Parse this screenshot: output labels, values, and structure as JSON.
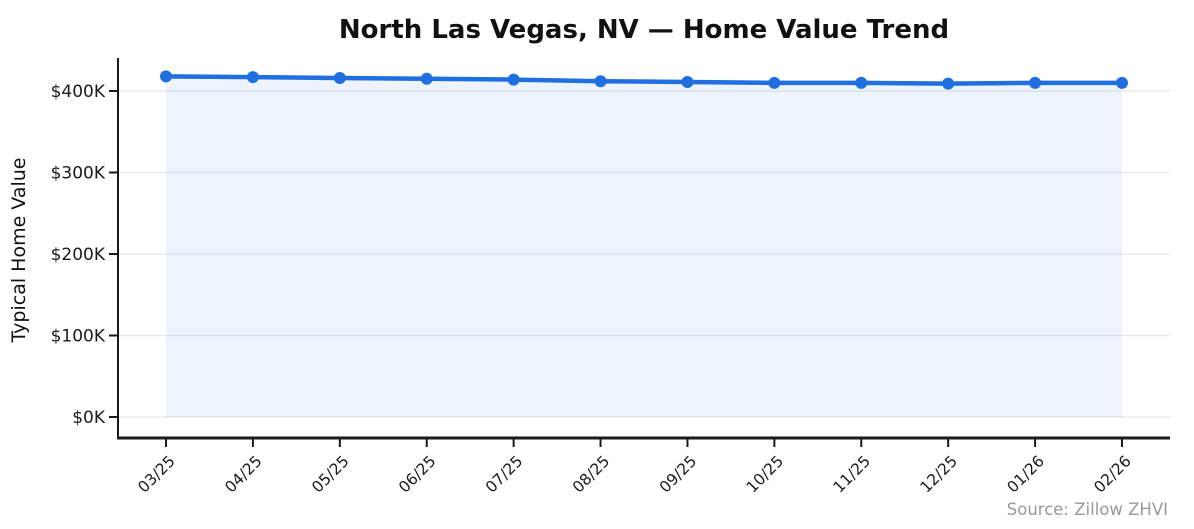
{
  "title": "North Las Vegas, NV — Home Value Trend",
  "source_note": "Source: Zillow ZHVI",
  "chart_data": {
    "type": "line",
    "title": "North Las Vegas, NV — Home Value Trend",
    "xlabel": "",
    "ylabel": "Typical Home Value",
    "x": [
      "03/25",
      "04/25",
      "05/25",
      "06/25",
      "07/25",
      "08/25",
      "09/25",
      "10/25",
      "11/25",
      "12/25",
      "01/26",
      "02/26"
    ],
    "series": [
      {
        "name": "Typical Home Value",
        "values": [
          418000,
          417000,
          416000,
          415000,
          414000,
          412000,
          411000,
          410000,
          410000,
          409000,
          410000,
          410000
        ]
      }
    ],
    "y_ticks": [
      {
        "value": 0,
        "label": "$0K"
      },
      {
        "value": 100000,
        "label": "$100K"
      },
      {
        "value": 200000,
        "label": "$200K"
      },
      {
        "value": 300000,
        "label": "$300K"
      },
      {
        "value": 400000,
        "label": "$400K"
      }
    ],
    "ylim": [
      0,
      440000
    ],
    "grid": "horizontal",
    "area_fill": true,
    "legend_position": "none",
    "annotations": [
      "Source: Zillow ZHVI"
    ],
    "colors": {
      "line": "#1f6fe0",
      "marker": "#1f6fe0",
      "area_fill": "rgba(31,111,224,0.08)",
      "grid": "#e8e8e8",
      "axis": "#1a1a1a",
      "tick_text": "#1a1a1a",
      "title_text": "#111111",
      "source_text": "#999999",
      "background": "#ffffff"
    }
  }
}
